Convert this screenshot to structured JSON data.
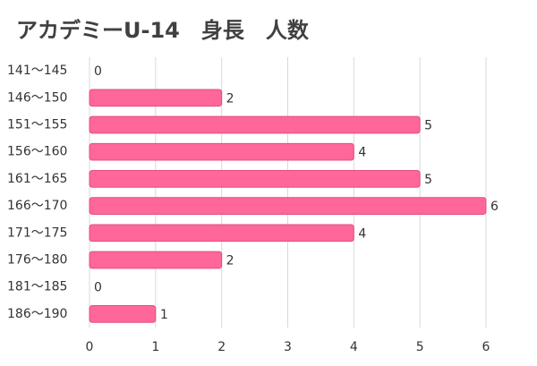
{
  "chart_data": {
    "type": "bar",
    "orientation": "horizontal",
    "title": "アカデミーU-14　身長　人数",
    "categories": [
      "141〜145",
      "146〜150",
      "151〜155",
      "156〜160",
      "161〜165",
      "166〜170",
      "171〜175",
      "176〜180",
      "181〜185",
      "186〜190"
    ],
    "values": [
      0,
      2,
      5,
      4,
      5,
      6,
      4,
      2,
      0,
      1
    ],
    "color": "#ff6699",
    "xlim": [
      0,
      6
    ],
    "xticks": [
      0,
      1,
      2,
      3,
      4,
      5,
      6
    ],
    "grid": true
  }
}
